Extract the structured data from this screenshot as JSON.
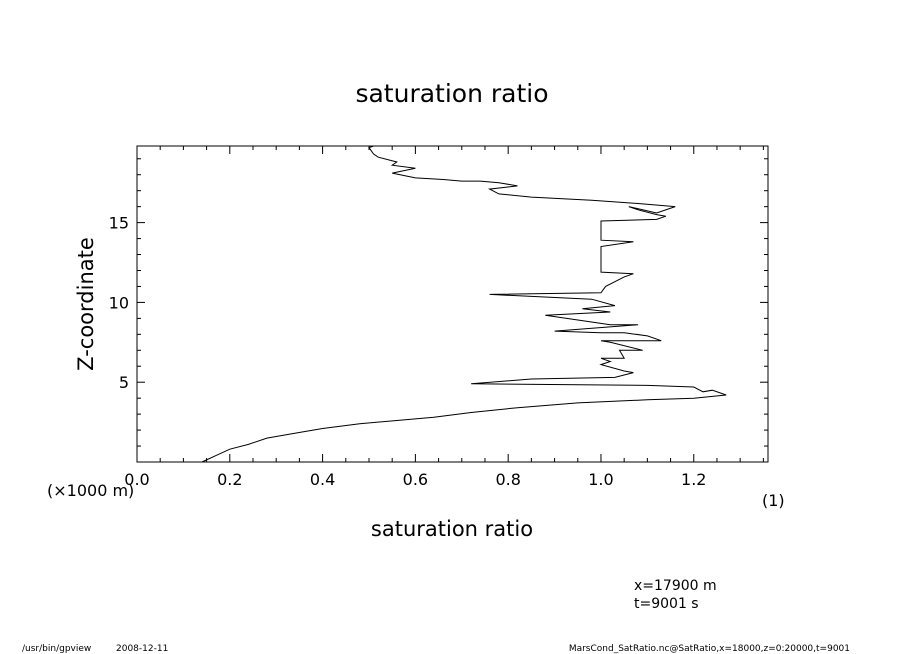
{
  "chart_data": {
    "type": "line",
    "title": "saturation ratio",
    "xlabel": "saturation ratio",
    "ylabel": "Z-coordinate",
    "x_units": "(1)",
    "y_units": "(×1000 m)",
    "xlim": [
      0.0,
      1.36
    ],
    "ylim": [
      0.0,
      19.8
    ],
    "xticks": [
      0.0,
      0.2,
      0.4,
      0.6,
      0.8,
      1.0,
      1.2
    ],
    "xtick_labels": [
      "0.0",
      "0.2",
      "0.4",
      "0.6",
      "0.8",
      "1.0",
      "1.2"
    ],
    "yticks": [
      5,
      10,
      15
    ],
    "ytick_labels": [
      "5",
      "10",
      "15"
    ],
    "grid": false,
    "legend": "none",
    "series": [
      {
        "points": [
          [
            0.14,
            0.0
          ],
          [
            0.17,
            0.4
          ],
          [
            0.2,
            0.8
          ],
          [
            0.24,
            1.1
          ],
          [
            0.28,
            1.5
          ],
          [
            0.34,
            1.8
          ],
          [
            0.4,
            2.1
          ],
          [
            0.48,
            2.4
          ],
          [
            0.56,
            2.6
          ],
          [
            0.64,
            2.8
          ],
          [
            0.72,
            3.1
          ],
          [
            0.82,
            3.4
          ],
          [
            0.95,
            3.7
          ],
          [
            1.1,
            3.9
          ],
          [
            1.2,
            4.0
          ],
          [
            1.27,
            4.2
          ],
          [
            1.24,
            4.5
          ],
          [
            1.22,
            4.4
          ],
          [
            1.2,
            4.7
          ],
          [
            1.1,
            4.8
          ],
          [
            0.72,
            4.9
          ],
          [
            0.85,
            5.2
          ],
          [
            1.03,
            5.3
          ],
          [
            1.07,
            5.6
          ],
          [
            1.05,
            5.7
          ],
          [
            1.0,
            6.1
          ],
          [
            1.02,
            6.3
          ],
          [
            1.0,
            6.5
          ],
          [
            1.05,
            6.5
          ],
          [
            1.04,
            7.0
          ],
          [
            1.09,
            7.0
          ],
          [
            1.02,
            7.5
          ],
          [
            1.0,
            7.6
          ],
          [
            1.13,
            7.6
          ],
          [
            1.1,
            7.9
          ],
          [
            1.05,
            8.1
          ],
          [
            1.0,
            8.1
          ],
          [
            0.9,
            8.2
          ],
          [
            1.08,
            8.6
          ],
          [
            1.02,
            8.6
          ],
          [
            0.88,
            9.2
          ],
          [
            1.02,
            9.4
          ],
          [
            0.96,
            9.6
          ],
          [
            1.03,
            9.8
          ],
          [
            0.98,
            10.2
          ],
          [
            0.76,
            10.5
          ],
          [
            1.0,
            10.6
          ],
          [
            1.01,
            11.0
          ],
          [
            1.05,
            11.6
          ],
          [
            1.07,
            11.8
          ],
          [
            1.0,
            11.9
          ],
          [
            1.0,
            13.5
          ],
          [
            1.07,
            13.8
          ],
          [
            1.0,
            13.9
          ],
          [
            1.0,
            15.1
          ],
          [
            1.12,
            15.2
          ],
          [
            1.14,
            15.4
          ],
          [
            1.12,
            15.5
          ],
          [
            1.08,
            15.8
          ],
          [
            1.06,
            16.0
          ],
          [
            1.12,
            15.6
          ],
          [
            1.16,
            16.0
          ],
          [
            1.08,
            16.2
          ],
          [
            0.98,
            16.4
          ],
          [
            0.85,
            16.6
          ],
          [
            0.78,
            16.8
          ],
          [
            0.76,
            17.1
          ],
          [
            0.82,
            17.3
          ],
          [
            0.78,
            17.5
          ],
          [
            0.74,
            17.6
          ],
          [
            0.7,
            17.6
          ],
          [
            0.66,
            17.7
          ],
          [
            0.6,
            17.8
          ],
          [
            0.55,
            18.1
          ],
          [
            0.6,
            18.4
          ],
          [
            0.55,
            18.6
          ],
          [
            0.56,
            18.8
          ],
          [
            0.52,
            19.1
          ],
          [
            0.51,
            19.3
          ],
          [
            0.5,
            19.7
          ],
          [
            0.51,
            19.8
          ]
        ]
      }
    ]
  },
  "info": {
    "x_value": "x=17900 m",
    "t_value": "t=9001 s"
  },
  "footer": {
    "program": "/usr/bin/gpview",
    "date": "2008-12-11",
    "source": "MarsCond_SatRatio.nc@SatRatio,x=18000,z=0:20000,t=9001"
  }
}
